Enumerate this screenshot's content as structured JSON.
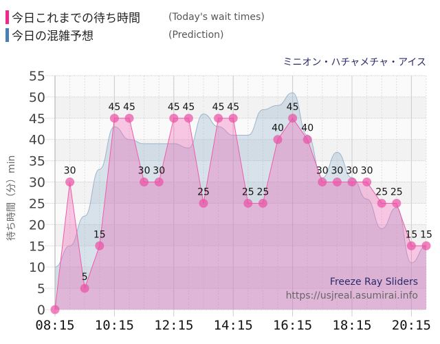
{
  "legend": {
    "items": [
      {
        "label_jp": "今日これまでの待ち時間",
        "label_en": "(Today's wait times)",
        "color": "#f0288c"
      },
      {
        "label_jp": "今日の混雑予想",
        "label_en": "(Prediction)",
        "color": "#4a7fb5"
      }
    ]
  },
  "ride_name": "ミニオン・ハチャメチャ・アイス",
  "y_axis_label": "待ち時間（分）min",
  "watermark": {
    "title": "Freeze Ray Sliders",
    "url": "https://usjreal.asumirai.info"
  },
  "chart_data": {
    "type": "area",
    "title": "ミニオン・ハチャメチャ・アイス",
    "xlabel": "",
    "ylabel": "待ち時間（分）min",
    "ylim": [
      0,
      55
    ],
    "yticks": [
      0,
      5,
      10,
      15,
      20,
      25,
      30,
      35,
      40,
      45,
      50,
      55
    ],
    "xtick_labels": [
      "08:15",
      "10:15",
      "12:15",
      "14:15",
      "16:15",
      "18:15",
      "20:15"
    ],
    "grid": true,
    "legend_position": "top-left",
    "x": [
      "08:15",
      "08:45",
      "09:15",
      "09:45",
      "10:15",
      "10:45",
      "11:15",
      "11:45",
      "12:15",
      "12:45",
      "13:15",
      "13:45",
      "14:15",
      "14:45",
      "15:15",
      "15:45",
      "16:15",
      "16:45",
      "17:15",
      "17:45",
      "18:15",
      "18:45",
      "19:15",
      "19:45",
      "20:15",
      "20:45"
    ],
    "series": [
      {
        "name": "今日これまでの待ち時間 (Today's wait times)",
        "color": "#f0288c",
        "values": [
          0,
          30,
          5,
          15,
          45,
          45,
          30,
          30,
          45,
          45,
          25,
          45,
          45,
          25,
          25,
          40,
          45,
          40,
          30,
          30,
          30,
          30,
          25,
          25,
          15,
          15
        ]
      },
      {
        "name": "今日の混雑予想 (Prediction)",
        "color": "#4a7fb5",
        "values": [
          10,
          15,
          22,
          33,
          43,
          40,
          39,
          39,
          39,
          38,
          46,
          43,
          41,
          41,
          47,
          48,
          51,
          41,
          31,
          37,
          31,
          26,
          19,
          24,
          11,
          15
        ]
      }
    ]
  }
}
